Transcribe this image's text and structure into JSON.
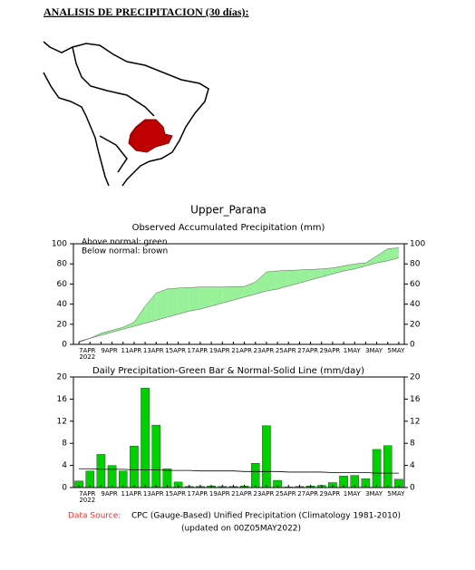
{
  "heading": "ANALISIS DE PRECIPITACION (30 días):",
  "region_title": "Upper_Parana",
  "chart_data": [
    {
      "type": "accumulated",
      "title": "Observed Accumulated Precipitation (mm)",
      "annotations": [
        "Above normal: green",
        "Below normal: brown"
      ],
      "categories": [
        null,
        "7APR",
        null,
        "9APR",
        null,
        "11APR",
        null,
        "13APR",
        null,
        "15APR",
        null,
        "17APR",
        null,
        "19APR",
        null,
        "21APR",
        null,
        "23APR",
        null,
        "25APR",
        null,
        "27APR",
        null,
        "29APR",
        null,
        "1MAY",
        null,
        "3MAY",
        null,
        "5MAY"
      ],
      "x_year": "2022",
      "observed": {
        "color": "#000000",
        "values": [
          2,
          6,
          11,
          14,
          17,
          22,
          38,
          51,
          55,
          56,
          56.5,
          57,
          57,
          57,
          57.5,
          57.5,
          62,
          72,
          73,
          73.5,
          74,
          74.5,
          75,
          76,
          78,
          80,
          81,
          88,
          95,
          96
        ]
      },
      "normal": {
        "color": "#000000",
        "values": [
          3,
          6,
          9,
          12,
          15,
          18,
          21,
          24,
          27,
          30,
          33,
          35,
          38,
          41,
          44,
          47,
          50,
          53,
          55,
          58,
          61,
          64,
          67,
          70,
          73,
          75,
          78,
          81,
          83,
          86
        ]
      },
      "above_color": "#98f098",
      "below_color": "#c0a090",
      "ylim": [
        0,
        100
      ],
      "yticks": [
        0,
        20,
        40,
        60,
        80,
        100
      ]
    },
    {
      "type": "bar",
      "title": "Daily Precipitation-Green Bar & Normal-Solid Line (mm/day)",
      "categories": [
        null,
        "7APR",
        null,
        "9APR",
        null,
        "11APR",
        null,
        "13APR",
        null,
        "15APR",
        null,
        "17APR",
        null,
        "19APR",
        null,
        "21APR",
        null,
        "23APR",
        null,
        "25APR",
        null,
        "27APR",
        null,
        "29APR",
        null,
        "1MAY",
        null,
        "3MAY",
        null,
        "5MAY"
      ],
      "x_year": "2022",
      "values": [
        1.2,
        3,
        6,
        4,
        3,
        7.5,
        18,
        11.3,
        3.4,
        1,
        0.2,
        0.2,
        0.3,
        0.2,
        0.2,
        0.3,
        4.4,
        11.2,
        1.3,
        0.1,
        0.2,
        0.3,
        0.4,
        0.9,
        2.1,
        2.2,
        1.6,
        6.9,
        7.6,
        1.5
      ],
      "color": "#00d000",
      "normal": {
        "color": "#000000",
        "values": [
          3.4,
          3.4,
          3.3,
          3.3,
          3.3,
          3.2,
          3.2,
          3.2,
          3.1,
          3.1,
          3.1,
          3.0,
          3.0,
          3.0,
          3.0,
          2.9,
          2.9,
          2.9,
          2.9,
          2.8,
          2.8,
          2.8,
          2.8,
          2.7,
          2.7,
          2.7,
          2.7,
          2.6,
          2.6,
          2.6
        ]
      },
      "ylim": [
        0,
        20
      ],
      "yticks": [
        0,
        4,
        8,
        12,
        16,
        20
      ]
    }
  ],
  "footer": {
    "source_label": "Data Source:",
    "source": "CPC (Gauge-Based) Unified Precipitation (Climatology 1981-2010)",
    "updated": "(updated on 00Z05MAY2022)"
  }
}
